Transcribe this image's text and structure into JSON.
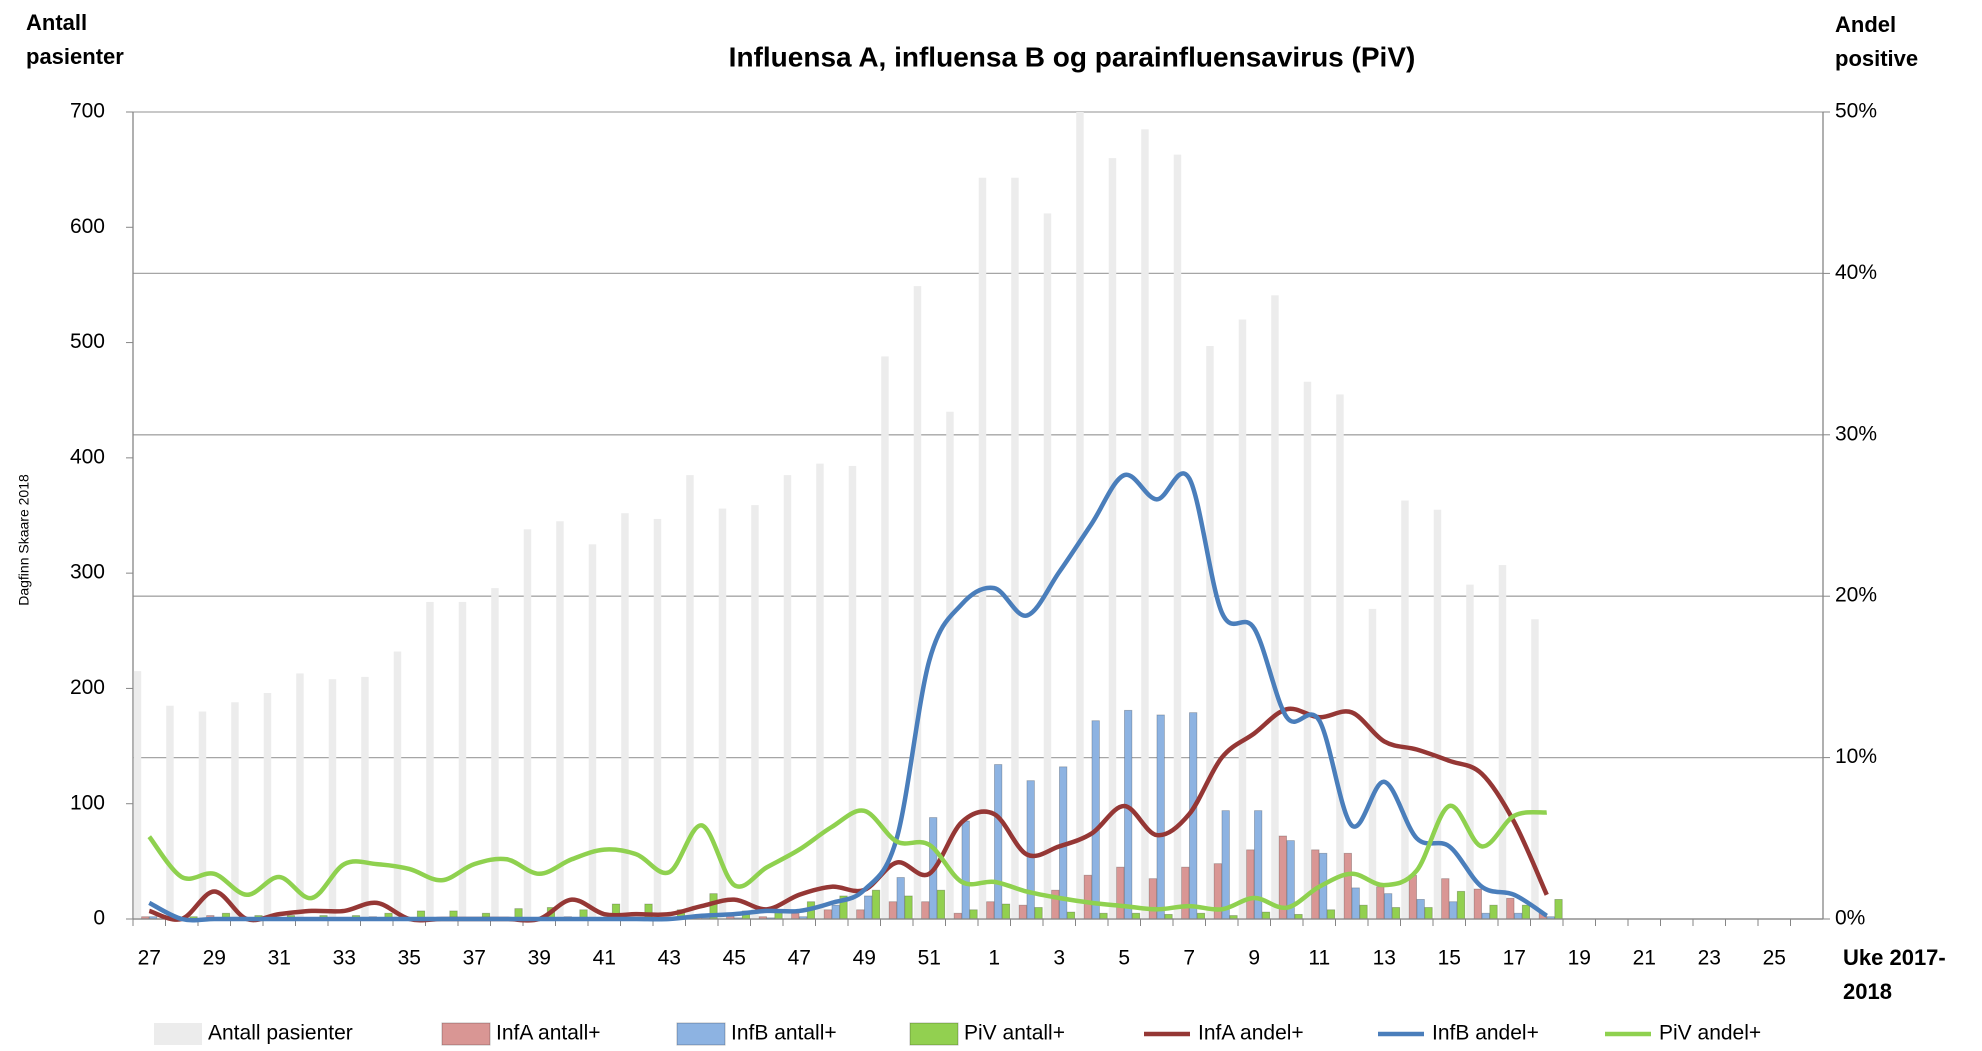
{
  "chart_data": {
    "type": "bar",
    "title": "Influensa A, influensa B og parainfluensavirus (PiV)",
    "y_label": "Antall pasienter",
    "y2_label": "Andel positive",
    "x_label": "Uke 2017-2018",
    "annotation": "Dagfinn Skaare 2018",
    "categories": [
      "27",
      null,
      "29",
      null,
      "31",
      null,
      "33",
      null,
      "35",
      null,
      "37",
      null,
      "39",
      null,
      "41",
      null,
      "43",
      null,
      "45",
      null,
      "47",
      null,
      "49",
      null,
      "51",
      null,
      "1",
      null,
      "3",
      null,
      "5",
      null,
      "7",
      null,
      "9",
      null,
      "11",
      null,
      "13",
      null,
      "15",
      null,
      "17",
      null,
      "19",
      null,
      "21",
      null,
      "23",
      null,
      "25",
      null
    ],
    "ylim": [
      0,
      700
    ],
    "yticks": [
      0,
      100,
      200,
      300,
      400,
      500,
      600,
      700
    ],
    "y2lim": [
      0,
      50
    ],
    "y2ticks": [
      {
        "value": 0,
        "label": "0%"
      },
      {
        "value": 10,
        "label": "10%"
      },
      {
        "value": 20,
        "label": "20%"
      },
      {
        "value": 30,
        "label": "30%"
      },
      {
        "value": 40,
        "label": "40%"
      },
      {
        "value": 50,
        "label": "50%"
      }
    ],
    "grid": true,
    "legend": "bottom",
    "series": [
      {
        "name": "Antall pasienter",
        "type": "bar",
        "color": "#ececec",
        "values": [
          215,
          185,
          180,
          188,
          196,
          213,
          208,
          210,
          232,
          275,
          275,
          287,
          338,
          345,
          325,
          352,
          347,
          385,
          356,
          359,
          385,
          395,
          393,
          488,
          549,
          440,
          643,
          643,
          612,
          700,
          660,
          685,
          663,
          497,
          520,
          541,
          466,
          455,
          269,
          363,
          355,
          290,
          307,
          260,
          null,
          null,
          null,
          null,
          null,
          null,
          null,
          null
        ]
      },
      {
        "name": "InfA antall+",
        "type": "bar",
        "color": "#d99694",
        "values": [
          2,
          0,
          3,
          0,
          1,
          1,
          1,
          2,
          0,
          0,
          0,
          0,
          0,
          2,
          1,
          1,
          1,
          2,
          3,
          2,
          5,
          8,
          8,
          15,
          15,
          5,
          15,
          12,
          25,
          38,
          45,
          35,
          45,
          48,
          60,
          72,
          60,
          57,
          28,
          38,
          35,
          26,
          18,
          5,
          null,
          null,
          null,
          null,
          null,
          null,
          null,
          null
        ]
      },
      {
        "name": "InfB antall+",
        "type": "bar",
        "color": "#8db3e2",
        "values": [
          2,
          0,
          0,
          0,
          0,
          0,
          0,
          0,
          0,
          0,
          0,
          0,
          0,
          0,
          0,
          0,
          0,
          1,
          1,
          1,
          2,
          12,
          20,
          36,
          88,
          85,
          134,
          120,
          132,
          172,
          181,
          177,
          179,
          94,
          94,
          68,
          57,
          27,
          22,
          17,
          15,
          5,
          5,
          2,
          null,
          null,
          null,
          null,
          null,
          null,
          null,
          null
        ]
      },
      {
        "name": "PiV antall+",
        "type": "bar",
        "color": "#92d050",
        "values": [
          0,
          2,
          5,
          3,
          3,
          3,
          3,
          5,
          7,
          7,
          5,
          9,
          10,
          8,
          13,
          13,
          8,
          22,
          7,
          8,
          15,
          20,
          25,
          20,
          25,
          8,
          13,
          10,
          6,
          5,
          5,
          4,
          5,
          3,
          6,
          4,
          8,
          12,
          10,
          10,
          24,
          12,
          12,
          17,
          null,
          null,
          null,
          null,
          null,
          null,
          null,
          null
        ]
      },
      {
        "name": "InfA andel+",
        "type": "line",
        "axis": "y2",
        "color": "#953735",
        "values": [
          0.5,
          0,
          1.7,
          0,
          0.3,
          0.5,
          0.5,
          1.0,
          0,
          0,
          0,
          0,
          0,
          1.2,
          0.3,
          0.3,
          0.3,
          0.8,
          1.2,
          0.6,
          1.5,
          2.0,
          1.8,
          3.5,
          2.8,
          6.0,
          6.5,
          4.0,
          4.5,
          5.3,
          7.0,
          5.2,
          6.5,
          10.0,
          11.5,
          13.0,
          12.5,
          12.8,
          11.0,
          10.5,
          9.8,
          9.0,
          6.0,
          1.5,
          null,
          null,
          null,
          null,
          null,
          null,
          null,
          null
        ]
      },
      {
        "name": "InfB andel+",
        "type": "line",
        "axis": "y2",
        "color": "#4a7ebb",
        "values": [
          1.0,
          0,
          0,
          0,
          0,
          0,
          0,
          0,
          0,
          0,
          0,
          0,
          0,
          0,
          0,
          0,
          0,
          0.2,
          0.3,
          0.5,
          0.5,
          1.0,
          1.8,
          5.0,
          16.0,
          19.5,
          20.5,
          18.8,
          21.5,
          24.5,
          27.5,
          26.0,
          27.3,
          19.0,
          18.0,
          12.5,
          12.3,
          5.8,
          8.5,
          5.0,
          4.5,
          2.0,
          1.5,
          0.2,
          null,
          null,
          null,
          null,
          null,
          null,
          null,
          null
        ]
      },
      {
        "name": "PiV andel+",
        "type": "line",
        "axis": "y2",
        "color": "#8fd14f",
        "values": [
          5.1,
          2.6,
          2.8,
          1.5,
          2.6,
          1.3,
          3.4,
          3.4,
          3.1,
          2.4,
          3.4,
          3.7,
          2.8,
          3.7,
          4.3,
          4.0,
          2.9,
          5.8,
          2.1,
          3.2,
          4.3,
          5.7,
          6.7,
          4.8,
          4.6,
          2.3,
          2.3,
          1.7,
          1.3,
          1.0,
          0.8,
          0.6,
          0.8,
          0.6,
          1.3,
          0.7,
          2.0,
          2.8,
          2.1,
          3.0,
          7.0,
          4.5,
          6.4,
          6.6,
          null,
          null,
          null,
          null,
          null,
          null,
          null,
          null
        ]
      }
    ]
  }
}
